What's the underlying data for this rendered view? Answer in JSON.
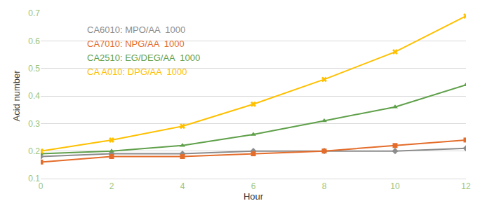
{
  "chart_data": {
    "type": "line",
    "x_label": "Hour",
    "y_label": "Acid number",
    "x": [
      0,
      2,
      4,
      6,
      8,
      10,
      12
    ],
    "series": [
      {
        "name": "CA6010: MPO/AA  1000",
        "color": "#8c8c8c",
        "marker": "diamond",
        "line_style": "solid",
        "values": [
          0.18,
          0.19,
          0.19,
          0.2,
          0.2,
          0.2,
          0.21
        ]
      },
      {
        "name": "CA7010: NPG/AA  1000",
        "color": "#e46c2a",
        "marker": "square",
        "line_style": "solid",
        "values": [
          0.16,
          0.18,
          0.18,
          0.19,
          0.2,
          0.22,
          0.24
        ]
      },
      {
        "name": "CA2510: EG/DEG/AA  1000",
        "color": "#5fa04a",
        "marker": "triangle",
        "line_style": "solid",
        "values": [
          0.19,
          0.2,
          0.22,
          0.26,
          0.31,
          0.36,
          0.44
        ]
      },
      {
        "name": "CA A010: DPG/AA  1000",
        "color": "#ffc000",
        "marker": "x",
        "line_style": "solid",
        "values": [
          0.2,
          0.24,
          0.29,
          0.37,
          0.46,
          0.56,
          0.69
        ]
      }
    ],
    "xlim": [
      0,
      12
    ],
    "xticks": [
      0,
      2,
      4,
      6,
      8,
      10,
      12
    ],
    "ylim": [
      0.1,
      0.7
    ],
    "yticks": [
      0.1,
      0.2,
      0.3,
      0.4,
      0.5,
      0.6,
      0.7
    ],
    "grid": true,
    "legend": "upper left"
  }
}
